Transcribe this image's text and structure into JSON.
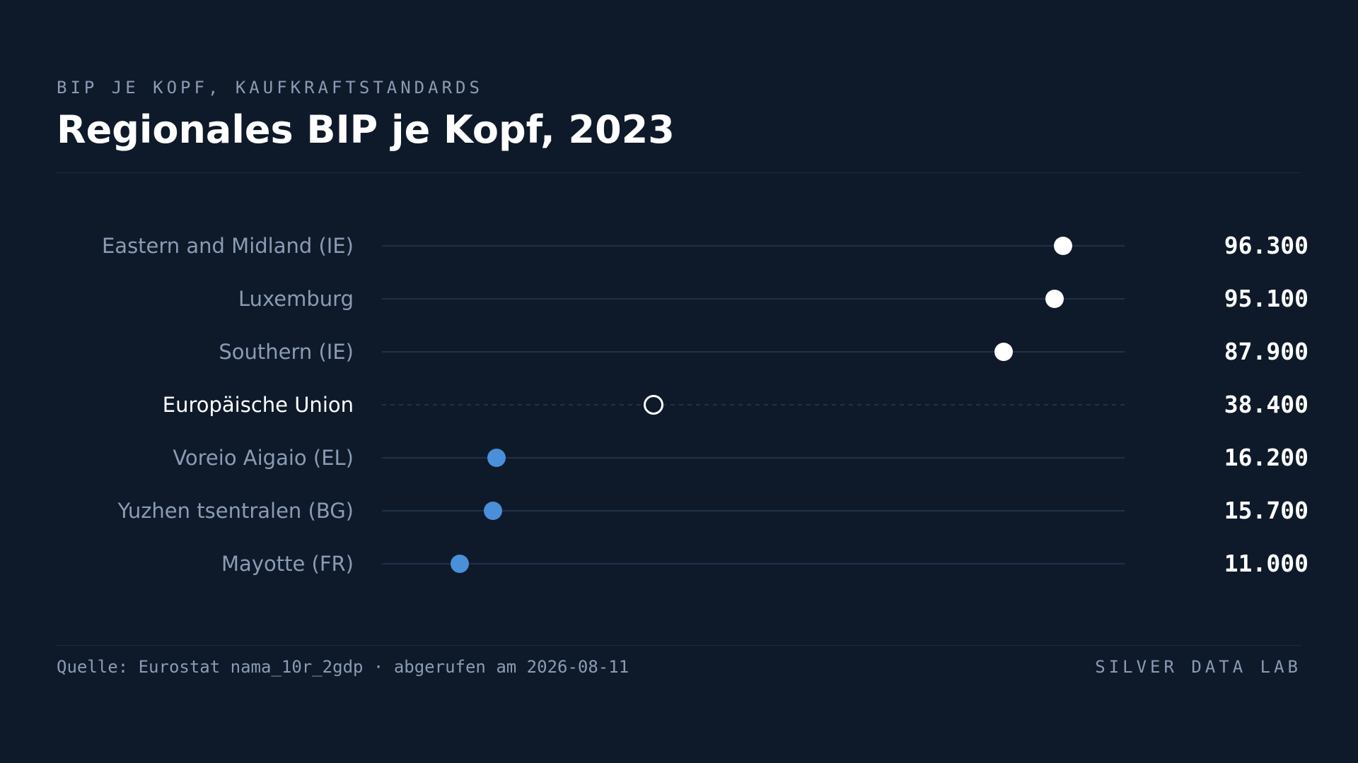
{
  "header": {
    "eyebrow": "BIP JE KOPF, KAUFKRAFTSTANDARDS",
    "title": "Regionales BIP je Kopf, 2023"
  },
  "footer": {
    "source": "Quelle: Eurostat nama_10r_2gdp · abgerufen am 2026-08-11",
    "brand": "SILVER DATA LAB"
  },
  "colors": {
    "background": "#0e1a2a",
    "high": "#ffffff",
    "low": "#4a8fd9",
    "reference_stroke": "#ffffff",
    "track": "#1f3148",
    "label": "#8b9bb4",
    "reference_label": "#ffffff",
    "value": "#ffffff"
  },
  "chart_data": {
    "type": "dot",
    "xlim": [
      0,
      105000
    ],
    "grid": false,
    "legend": "none",
    "rows": [
      {
        "label": "Eastern and Midland (IE)",
        "value": 96300,
        "value_label": "96.300",
        "group": "high"
      },
      {
        "label": "Luxemburg",
        "value": 95100,
        "value_label": "95.100",
        "group": "high"
      },
      {
        "label": "Southern (IE)",
        "value": 87900,
        "value_label": "87.900",
        "group": "high"
      },
      {
        "label": "Europäische Union",
        "value": 38400,
        "value_label": "38.400",
        "group": "reference"
      },
      {
        "label": "Voreio Aigaio (EL)",
        "value": 16200,
        "value_label": "16.200",
        "group": "low"
      },
      {
        "label": "Yuzhen tsentralen (BG)",
        "value": 15700,
        "value_label": "15.700",
        "group": "low"
      },
      {
        "label": "Mayotte (FR)",
        "value": 11000,
        "value_label": "11.000",
        "group": "low"
      }
    ]
  }
}
